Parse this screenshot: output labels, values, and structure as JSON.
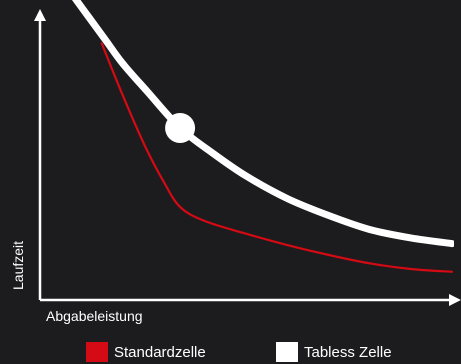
{
  "chart_data": {
    "type": "line",
    "title": "",
    "xlabel": "Abgabeleistung",
    "ylabel": "Laufzeit",
    "xlim": [
      0,
      100
    ],
    "ylim": [
      0,
      100
    ],
    "grid": false,
    "legend_placement": "bottom",
    "series": [
      {
        "name": "Standardzelle",
        "color": "#d40a14",
        "x": [
          15,
          18,
          22,
          26,
          30,
          34,
          40,
          50,
          60,
          70,
          80,
          90,
          100
        ],
        "y": [
          91,
          80,
          66,
          53,
          42,
          33,
          28,
          23.5,
          19.5,
          16,
          13,
          11,
          10
        ]
      },
      {
        "name": "Tabless Zelle",
        "color": "#ffffff",
        "x": [
          8,
          12,
          16,
          20,
          26,
          34,
          42,
          50,
          60,
          70,
          80,
          90,
          100
        ],
        "y": [
          108,
          100,
          92,
          84,
          74,
          61,
          52,
          44,
          36,
          30,
          25,
          22,
          20
        ]
      }
    ],
    "highlight_point": {
      "series": "Tabless Zelle",
      "x": 34,
      "y": 61
    }
  }
}
